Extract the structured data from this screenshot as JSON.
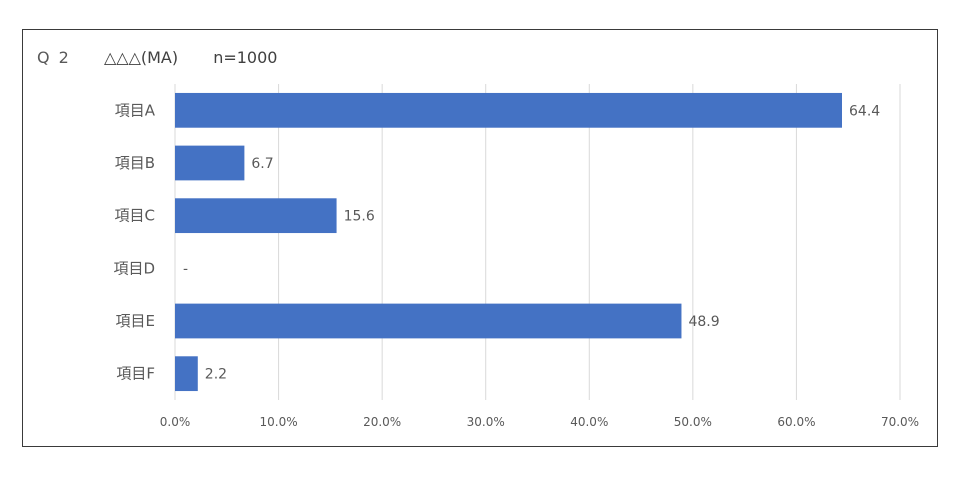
{
  "header": {
    "question_number": "Q 2",
    "question_title": "△△△(MA)",
    "sample_size": "n=1000"
  },
  "chart_data": {
    "type": "bar",
    "orientation": "horizontal",
    "categories": [
      "項目A",
      "項目B",
      "項目C",
      "項目D",
      "項目E",
      "項目F"
    ],
    "values": [
      64.4,
      6.7,
      15.6,
      null,
      48.9,
      2.2
    ],
    "data_labels": [
      "64.4",
      "6.7",
      "15.6",
      "-",
      "48.9",
      "2.2"
    ],
    "xlim": [
      0,
      70
    ],
    "x_ticks": [
      0,
      10,
      20,
      30,
      40,
      50,
      60,
      70
    ],
    "x_tick_labels": [
      "0.0%",
      "10.0%",
      "20.0%",
      "30.0%",
      "40.0%",
      "50.0%",
      "60.0%",
      "70.0%"
    ],
    "grid": true,
    "legend": false,
    "bar_color": "#4472C4",
    "grid_color": "#D9D9D9"
  }
}
